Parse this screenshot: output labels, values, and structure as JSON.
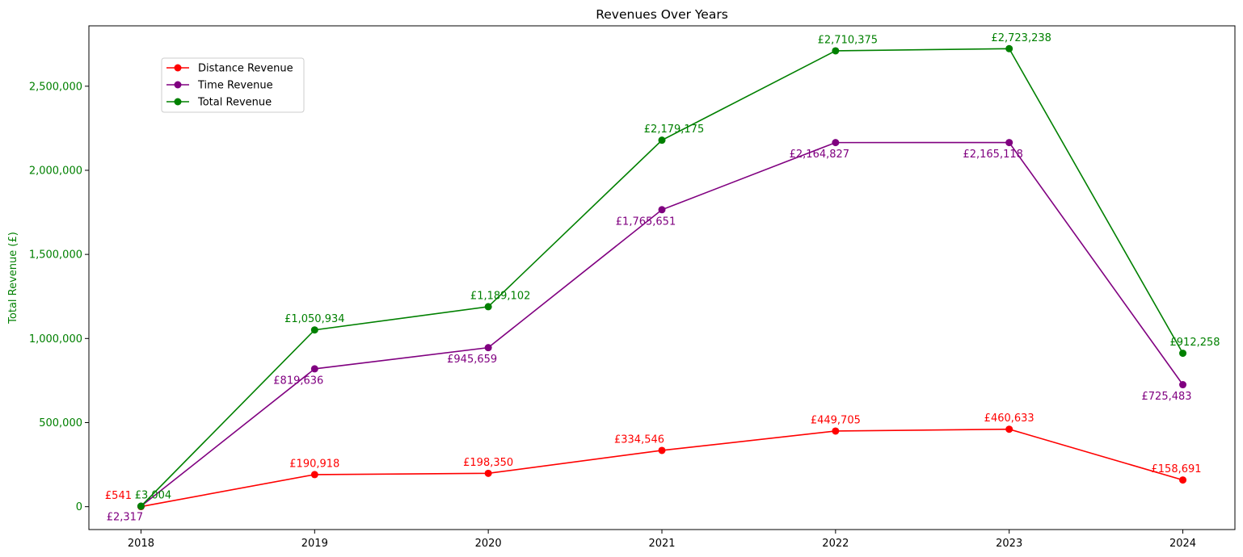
{
  "chart_data": {
    "type": "line",
    "title": "Revenues Over Years",
    "xlabel": "",
    "ylabel": "Total Revenue (£)",
    "x": [
      2018,
      2019,
      2020,
      2021,
      2022,
      2023,
      2024
    ],
    "xticks": [
      "2018",
      "2019",
      "2020",
      "2021",
      "2022",
      "2023",
      "2024"
    ],
    "yticks": [
      0,
      500000,
      1000000,
      1500000,
      2000000,
      2500000
    ],
    "ytick_labels": [
      "0",
      "500,000",
      "1,000,000",
      "1,500,000",
      "2,000,000",
      "2,500,000"
    ],
    "ylim": [
      -136000,
      2859000
    ],
    "xlim": [
      2017.7,
      2024.3
    ],
    "grid": false,
    "legend_position": "upper-left",
    "ytick_color": "#008000",
    "series": [
      {
        "name": "Distance Revenue",
        "color": "#ff0000",
        "values": [
          541,
          190918,
          198350,
          334546,
          449705,
          460633,
          158691
        ],
        "labels": [
          "£541",
          "£190,918",
          "£198,350",
          "£334,546",
          "£449,705",
          "£460,633",
          "£158,691"
        ]
      },
      {
        "name": "Time Revenue",
        "color": "#800080",
        "values": [
          2317,
          819636,
          945659,
          1765651,
          2164827,
          2165118,
          725483
        ],
        "labels": [
          "£2,317",
          "£819,636",
          "£945,659",
          "£1,765,651",
          "£2,164,827",
          "£2,165,118",
          "£725,483"
        ]
      },
      {
        "name": "Total Revenue",
        "color": "#008000",
        "values": [
          3004,
          1050934,
          1189102,
          2179175,
          2710375,
          2723238,
          912258
        ],
        "labels": [
          "£3,004",
          "£1,050,934",
          "£1,189,102",
          "£2,179,175",
          "£2,710,375",
          "£2,723,238",
          "£912,258"
        ]
      }
    ]
  }
}
